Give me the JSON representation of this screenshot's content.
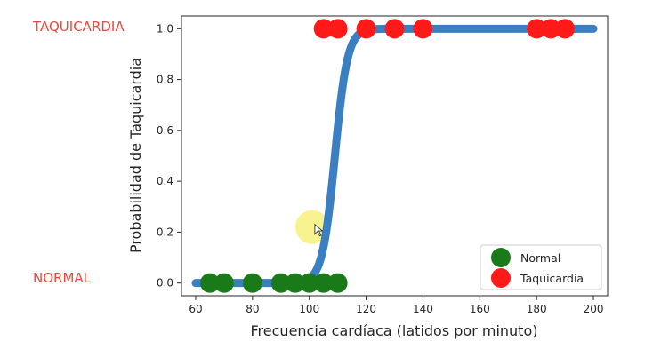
{
  "annotations": {
    "top_label": "TAQUICARDIA",
    "bottom_label": "NORMAL"
  },
  "chart_data": {
    "type": "scatter",
    "xlabel": "Frecuencia cardíaca (latidos por minuto)",
    "ylabel": "Probabilidad de Taquicardia",
    "xlim": [
      55,
      205
    ],
    "ylim": [
      -0.05,
      1.05
    ],
    "xticks": [
      "60",
      "80",
      "100",
      "120",
      "140",
      "160",
      "180",
      "200"
    ],
    "yticks": [
      "0.0",
      "0.2",
      "0.4",
      "0.6",
      "0.8",
      "1.0"
    ],
    "grid": false,
    "legend_position": "bottom-right",
    "curve": {
      "type": "logistic",
      "midpoint": 109,
      "steepness": 0.45,
      "x_range": [
        60,
        200
      ],
      "color": "#3a7fc1"
    },
    "series": [
      {
        "name": "Normal",
        "color": "#1a7a1a",
        "x": [
          65,
          70,
          80,
          90,
          95,
          100,
          105,
          110
        ],
        "y": [
          0,
          0,
          0,
          0,
          0,
          0,
          0,
          0
        ]
      },
      {
        "name": "Taquicardia",
        "color": "#ff1a1a",
        "x": [
          105,
          110,
          120,
          130,
          140,
          180,
          185,
          190
        ],
        "y": [
          1,
          1,
          1,
          1,
          1,
          1,
          1,
          1
        ]
      }
    ],
    "cursor": {
      "x": 101,
      "y": 0.22
    }
  }
}
